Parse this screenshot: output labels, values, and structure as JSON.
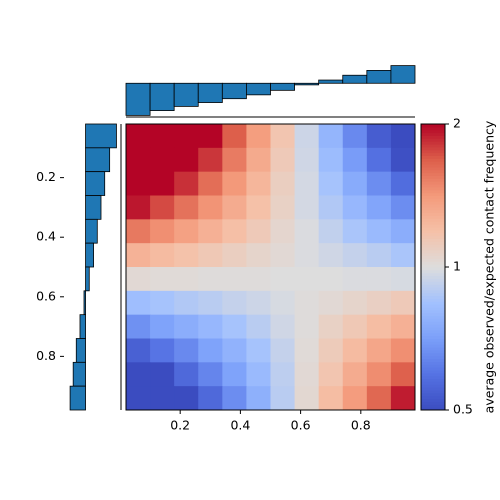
{
  "chart_data": {
    "type": "heatmap",
    "colormap": "coolwarm",
    "color_scale": "log",
    "colorbar_label": "average observed/expected contact frequency",
    "clim": [
      0.5,
      2
    ],
    "cticks": [
      0.5,
      1,
      2
    ],
    "xlim": [
      0.02,
      0.98
    ],
    "ylim": [
      0.02,
      0.98
    ],
    "xticks": [
      0.2,
      0.4,
      0.6,
      0.8
    ],
    "yticks": [
      0.2,
      0.4,
      0.6,
      0.8
    ],
    "values": [
      [
        2.3,
        2.3,
        2.3,
        2.04,
        1.68,
        1.39,
        1.16,
        0.95,
        0.79,
        0.65,
        0.54,
        0.44
      ],
      [
        2.3,
        2.3,
        2.13,
        1.82,
        1.55,
        1.32,
        1.13,
        0.96,
        0.82,
        0.7,
        0.59,
        0.51
      ],
      [
        2.3,
        2.09,
        1.84,
        1.61,
        1.42,
        1.25,
        1.1,
        0.97,
        0.85,
        0.75,
        0.66,
        0.58
      ],
      [
        1.93,
        1.75,
        1.59,
        1.44,
        1.31,
        1.19,
        1.08,
        0.97,
        0.88,
        0.8,
        0.73,
        0.66
      ],
      [
        1.56,
        1.46,
        1.37,
        1.28,
        1.2,
        1.13,
        1.05,
        0.99,
        0.92,
        0.86,
        0.81,
        0.76
      ],
      [
        1.27,
        1.22,
        1.18,
        1.14,
        1.1,
        1.06,
        1.03,
        0.99,
        0.96,
        0.93,
        0.9,
        0.86
      ],
      [
        1.03,
        1.02,
        1.02,
        1.01,
        1.01,
        1.01,
        1.0,
        1.0,
        1.0,
        0.99,
        0.99,
        0.98
      ],
      [
        0.83,
        0.85,
        0.88,
        0.9,
        0.93,
        0.95,
        0.98,
        1.01,
        1.03,
        1.06,
        1.09,
        1.13
      ],
      [
        0.67,
        0.72,
        0.76,
        0.8,
        0.85,
        0.9,
        0.96,
        1.01,
        1.08,
        1.14,
        1.21,
        1.28
      ],
      [
        0.55,
        0.6,
        0.65,
        0.72,
        0.78,
        0.85,
        0.93,
        1.02,
        1.12,
        1.22,
        1.34,
        1.46
      ],
      [
        0.44,
        0.5,
        0.57,
        0.64,
        0.72,
        0.81,
        0.91,
        1.03,
        1.16,
        1.31,
        1.47,
        1.67
      ],
      [
        0.44,
        0.44,
        0.49,
        0.57,
        0.66,
        0.77,
        0.9,
        1.04,
        1.21,
        1.4,
        1.64,
        1.91
      ]
    ],
    "marginal_color": "#1f77b4",
    "top_marginal": {
      "lim": [
        -1.05,
        0.6
      ],
      "values": [
        -1.0,
        -0.85,
        -0.72,
        -0.6,
        -0.48,
        -0.36,
        -0.22,
        -0.05,
        0.1,
        0.25,
        0.4,
        0.55
      ]
    },
    "left_marginal": {
      "lim": [
        -0.6,
        1.05
      ],
      "values": [
        1.0,
        0.78,
        0.62,
        0.5,
        0.38,
        0.26,
        0.12,
        -0.05,
        -0.18,
        -0.3,
        -0.4,
        -0.5
      ]
    }
  }
}
